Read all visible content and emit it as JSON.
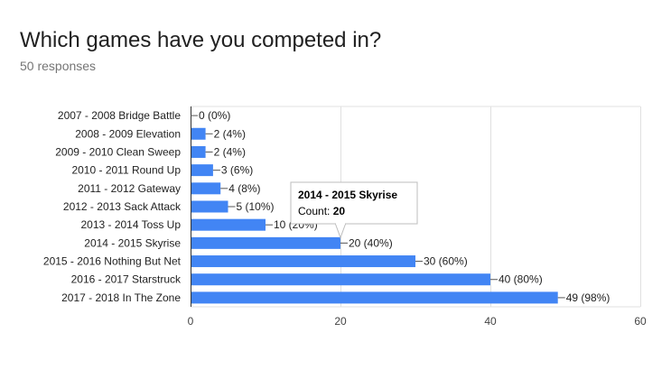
{
  "question": {
    "title": "Which games have you competed in?",
    "responses": "50 responses"
  },
  "colors": {
    "bar": "#4285f4",
    "grid": "#e0e0e0",
    "axis": "#333333"
  },
  "chart_data": {
    "type": "bar",
    "orientation": "horizontal",
    "categories": [
      "2007 - 2008 Bridge Battle",
      "2008 - 2009 Elevation",
      "2009 - 2010 Clean Sweep",
      "2010 - 2011 Round Up",
      "2011 - 2012 Gateway",
      "2012 - 2013 Sack Attack",
      "2013 - 2014 Toss Up",
      "2014 - 2015 Skyrise",
      "2015 - 2016 Nothing But Net",
      "2016 - 2017 Starstruck",
      "2017 - 2018 In The Zone"
    ],
    "values": [
      0,
      2,
      2,
      3,
      4,
      5,
      10,
      20,
      30,
      40,
      49
    ],
    "data_labels": [
      "0 (0%)",
      "2 (4%)",
      "2 (4%)",
      "3 (6%)",
      "4 (8%)",
      "5 (10%)",
      "10 (20%)",
      "20 (40%)",
      "30 (60%)",
      "40 (80%)",
      "49 (98%)"
    ],
    "xlim": [
      0,
      60
    ],
    "xticks": [
      0,
      20,
      40,
      60
    ],
    "grid": true,
    "tooltip": {
      "category": "2014 - 2015 Skyrise",
      "count_label": "Count:",
      "count_value": "20"
    }
  }
}
